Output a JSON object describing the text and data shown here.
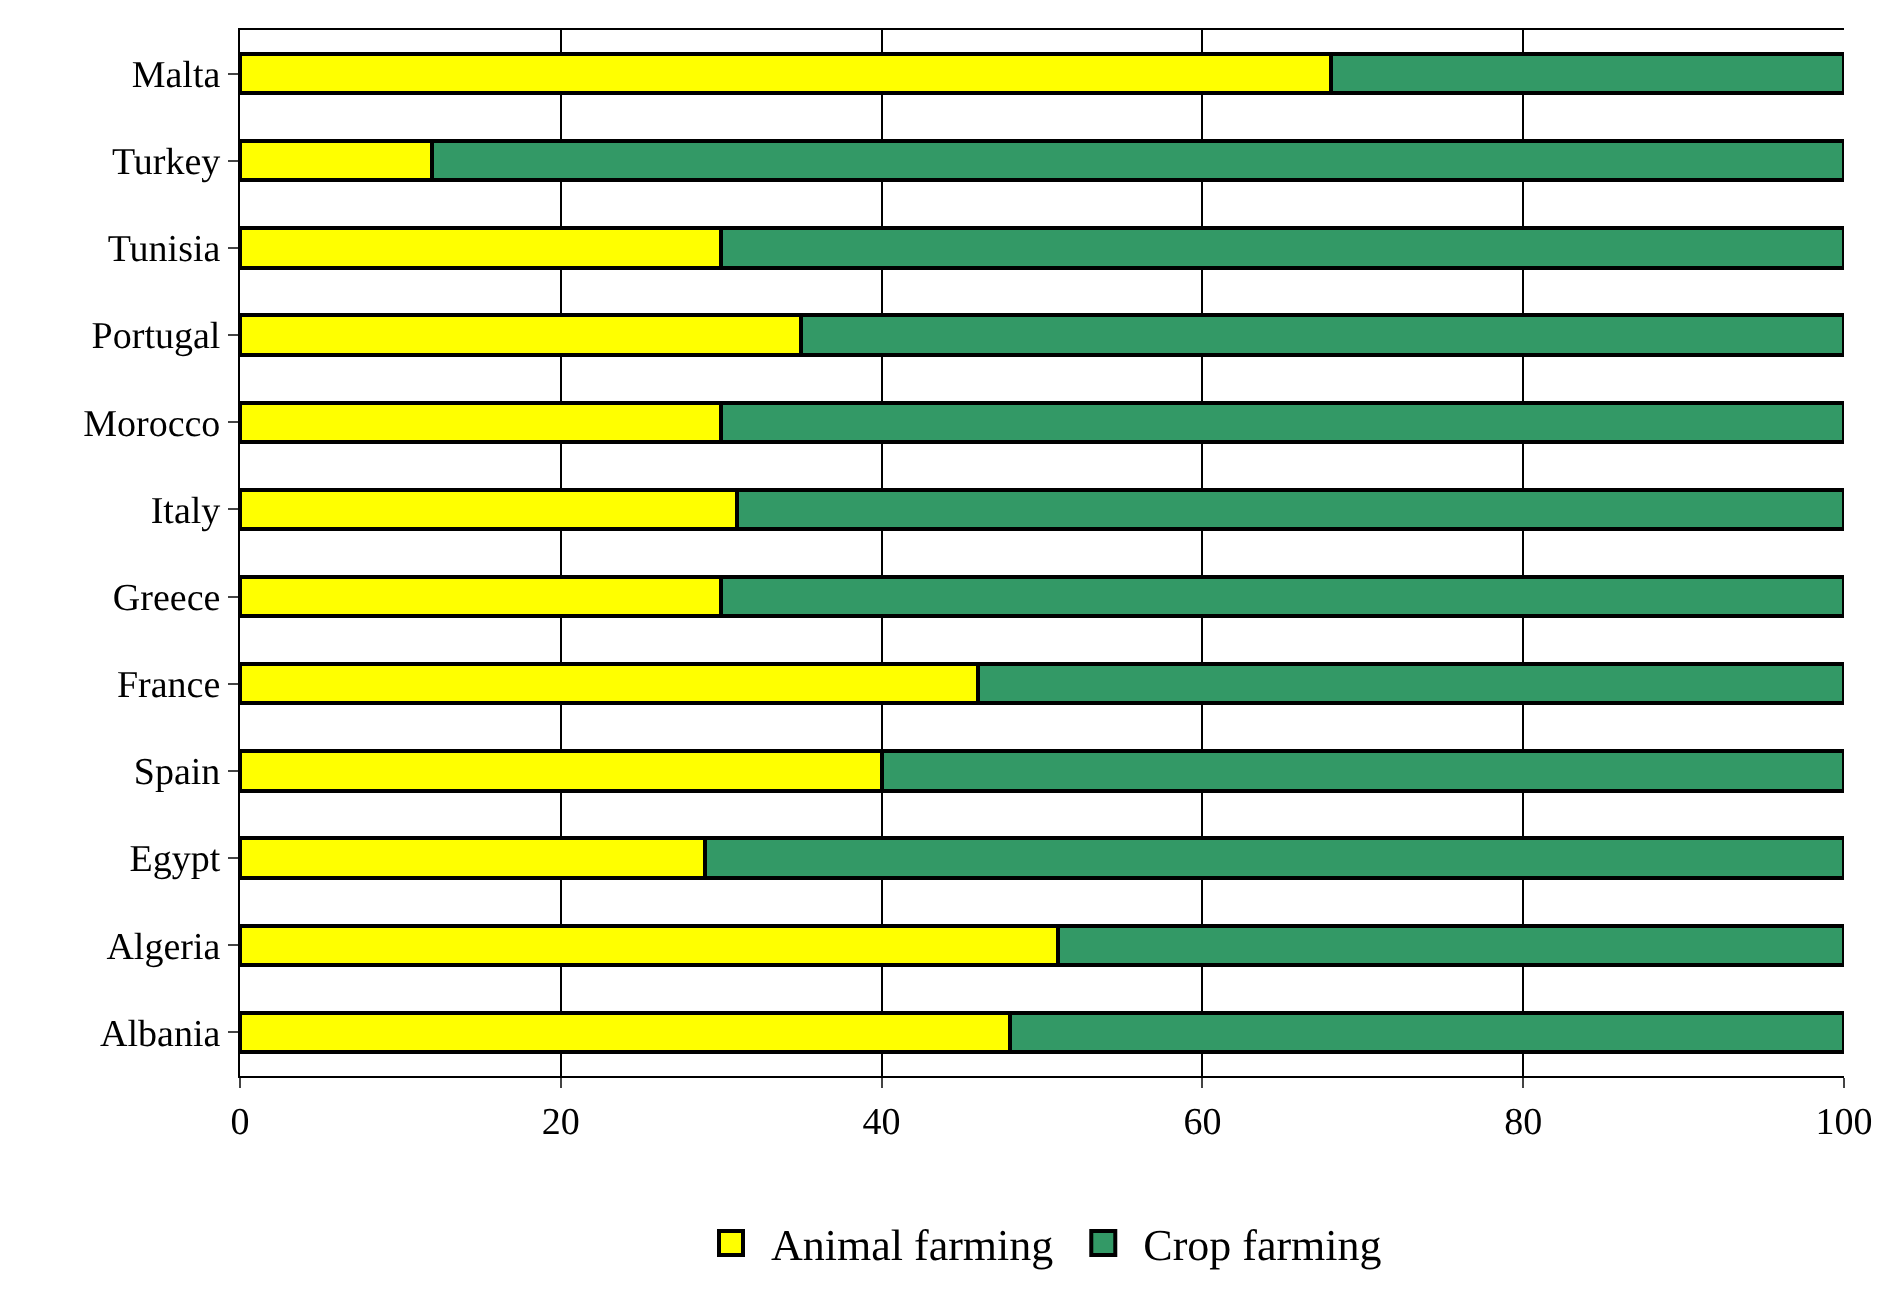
{
  "chart_data": {
    "type": "bar",
    "orientation": "horizontal",
    "stacked": true,
    "categories": [
      "Malta",
      "Turkey",
      "Tunisia",
      "Portugal",
      "Morocco",
      "Italy",
      "Greece",
      "France",
      "Spain",
      "Egypt",
      "Algeria",
      "Albania"
    ],
    "series": [
      {
        "name": "Animal farming",
        "color": "#ffff00",
        "values": [
          68,
          12,
          30,
          35,
          30,
          31,
          30,
          46,
          40,
          29,
          51,
          48
        ]
      },
      {
        "name": "Crop farming",
        "color": "#339966",
        "values": [
          32,
          88,
          70,
          65,
          70,
          69,
          70,
          54,
          60,
          71,
          49,
          52
        ]
      }
    ],
    "xlim": [
      0,
      100
    ],
    "xticks": [
      0,
      20,
      40,
      60,
      80,
      100
    ],
    "grid": "x",
    "legend": "bottom"
  }
}
